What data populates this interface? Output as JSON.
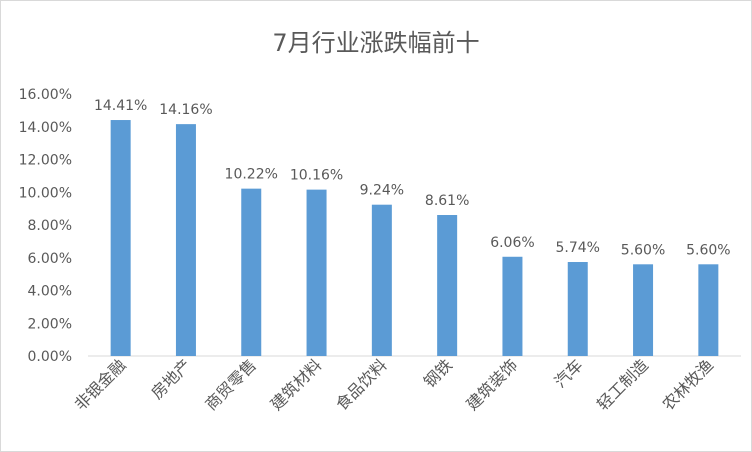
{
  "chart_data": {
    "type": "bar",
    "title": "7月行业涨跌幅前十",
    "xlabel": "",
    "ylabel": "",
    "categories": [
      "非银金融",
      "房地产",
      "商贸零售",
      "建筑材料",
      "食品饮料",
      "钢铁",
      "建筑装饰",
      "汽车",
      "轻工制造",
      "农林牧渔"
    ],
    "values": [
      14.41,
      14.16,
      10.22,
      10.16,
      9.24,
      8.61,
      6.06,
      5.74,
      5.6,
      5.6
    ],
    "data_labels": [
      "14.41%",
      "14.16%",
      "10.22%",
      "10.16%",
      "9.24%",
      "8.61%",
      "6.06%",
      "5.74%",
      "5.60%",
      "5.60%"
    ],
    "ylim": [
      0,
      16
    ],
    "y_ticks": [
      0,
      2,
      4,
      6,
      8,
      10,
      12,
      14,
      16
    ],
    "y_tick_labels": [
      "0.00%",
      "2.00%",
      "4.00%",
      "6.00%",
      "8.00%",
      "10.00%",
      "12.00%",
      "14.00%",
      "16.00%"
    ],
    "grid": false,
    "legend": "none",
    "colors": {
      "bar": "#5b9bd5",
      "axis": "#d9d9d9",
      "text": "#595959"
    }
  }
}
